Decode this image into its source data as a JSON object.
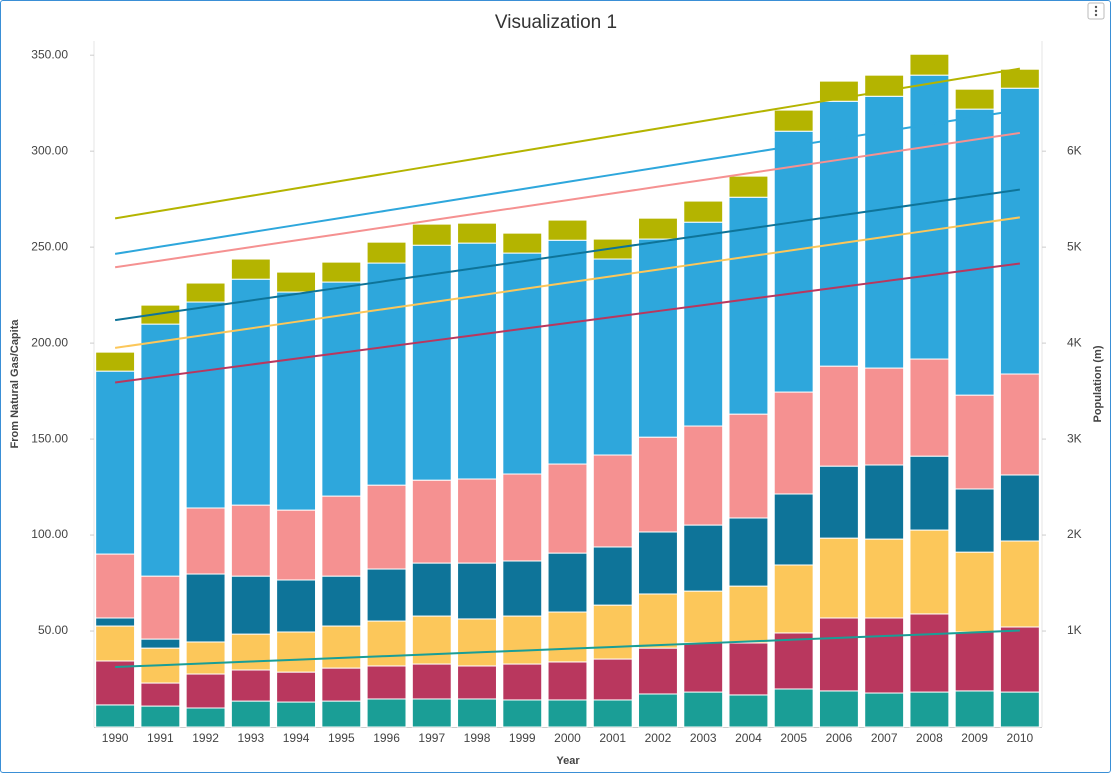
{
  "chart_data": {
    "type": "bar",
    "stacked": true,
    "title": "Visualization 1",
    "x_label": "Year",
    "y_label": "From Natural Gas/Capita",
    "y2_label": "Population (m)",
    "categories": [
      "1990",
      "1991",
      "1992",
      "1993",
      "1994",
      "1995",
      "1996",
      "1997",
      "1998",
      "1999",
      "2000",
      "2001",
      "2002",
      "2003",
      "2004",
      "2005",
      "2006",
      "2007",
      "2008",
      "2009",
      "2010"
    ],
    "ylim": [
      0,
      360
    ],
    "yticks": [
      {
        "value": 50,
        "label": "50.00"
      },
      {
        "value": 100,
        "label": "100.00"
      },
      {
        "value": 150,
        "label": "150.00"
      },
      {
        "value": 200,
        "label": "200.00"
      },
      {
        "value": 250,
        "label": "250.00"
      },
      {
        "value": 300,
        "label": "300.00"
      },
      {
        "value": 350,
        "label": "350.00"
      }
    ],
    "y2lim": [
      0,
      7200
    ],
    "y2ticks": [
      {
        "value": 1000,
        "label": "1K"
      },
      {
        "value": 2000,
        "label": "2K"
      },
      {
        "value": 3000,
        "label": "3K"
      },
      {
        "value": 4000,
        "label": "4K"
      },
      {
        "value": 5000,
        "label": "5K"
      },
      {
        "value": 6000,
        "label": "6K"
      }
    ],
    "grid": false,
    "series": [
      {
        "color": "#1a9e96",
        "values": [
          11.5,
          10.9,
          9.9,
          13.5,
          13,
          13.5,
          14.6,
          14.6,
          14.6,
          14.1,
          14.1,
          14.1,
          17.2,
          18.2,
          16.7,
          19.8,
          18.8,
          17.7,
          18.2,
          18.8,
          18.2
        ]
      },
      {
        "color": "#b9375e",
        "values": [
          22.9,
          12,
          17.7,
          16.2,
          15.6,
          17.2,
          17.2,
          18.2,
          17.2,
          18.7,
          19.8,
          21.3,
          23.9,
          25.6,
          27.1,
          29.2,
          38,
          39.1,
          40.7,
          30.7,
          33.9
        ]
      },
      {
        "color": "#fcc75a",
        "values": [
          18.2,
          18.2,
          16.7,
          18.7,
          20.9,
          21.9,
          23.4,
          25,
          24.5,
          25,
          26,
          28.1,
          28.2,
          27,
          29.6,
          35.4,
          41.6,
          41.1,
          43.7,
          41.6,
          44.8
        ]
      },
      {
        "color": "#0e7499",
        "values": [
          4.2,
          4.7,
          35.4,
          30.2,
          27.1,
          26,
          27.1,
          27.6,
          29.1,
          28.7,
          30.7,
          30.3,
          32.3,
          34.4,
          35.5,
          37,
          37.5,
          38.6,
          38.5,
          32.9,
          34.4
        ]
      },
      {
        "color": "#f59191",
        "values": [
          33.3,
          32.8,
          34.4,
          37,
          36.4,
          41.7,
          43.7,
          43.2,
          43.8,
          45.3,
          46.4,
          47.9,
          49.4,
          51.6,
          54.1,
          53.1,
          52.1,
          50.5,
          50.6,
          48.9,
          52.6
        ]
      },
      {
        "color": "#2ea7dc",
        "values": [
          95.3,
          131.3,
          107.3,
          117.7,
          113.6,
          111.5,
          115.7,
          122.4,
          122.9,
          115.1,
          116.6,
          102.1,
          103.2,
          106.2,
          113,
          135.9,
          138,
          141.6,
          147.9,
          149,
          148.9
        ]
      },
      {
        "color": "#b4b400",
        "values": [
          9.9,
          9.9,
          9.9,
          10.5,
          10.4,
          10.4,
          10.9,
          11,
          10.4,
          10.4,
          10.5,
          10.4,
          10.9,
          11,
          11,
          11,
          10.5,
          11,
          10.9,
          10.4,
          9.9
        ]
      },
      {
        "type": "line",
        "axis": "y2",
        "color": "#b4b400",
        "values": [
          5300,
          5378,
          5456,
          5534,
          5612,
          5690,
          5768,
          5846,
          5924,
          6002,
          6080,
          6158,
          6236,
          6314,
          6392,
          6470,
          6548,
          6626,
          6704,
          6782,
          6860
        ]
      },
      {
        "type": "line",
        "axis": "y2",
        "color": "#2ea7dc",
        "values": [
          4930,
          5005,
          5080,
          5155,
          5230,
          5305,
          5380,
          5455,
          5530,
          5605,
          5680,
          5755,
          5830,
          5905,
          5980,
          6055,
          6130,
          6205,
          6280,
          6355,
          6430
        ]
      },
      {
        "type": "line",
        "axis": "y2",
        "color": "#f59191",
        "values": [
          4790,
          4860,
          4930,
          5000,
          5070,
          5140,
          5210,
          5280,
          5350,
          5420,
          5490,
          5560,
          5630,
          5700,
          5770,
          5840,
          5910,
          5980,
          6050,
          6120,
          6190
        ]
      },
      {
        "type": "line",
        "axis": "y2",
        "color": "#0e7499",
        "values": [
          4240,
          4308,
          4376,
          4444,
          4512,
          4580,
          4648,
          4716,
          4784,
          4852,
          4920,
          4988,
          5056,
          5124,
          5192,
          5260,
          5328,
          5396,
          5464,
          5532,
          5600
        ]
      },
      {
        "type": "line",
        "axis": "y2",
        "color": "#fcc75a",
        "values": [
          3950,
          4018,
          4086,
          4154,
          4222,
          4290,
          4358,
          4426,
          4494,
          4562,
          4630,
          4698,
          4766,
          4834,
          4902,
          4970,
          5038,
          5106,
          5174,
          5242,
          5310
        ]
      },
      {
        "type": "line",
        "axis": "y2",
        "color": "#b9375e",
        "values": [
          3590,
          3652,
          3714,
          3776,
          3838,
          3900,
          3962,
          4024,
          4086,
          4148,
          4210,
          4272,
          4334,
          4396,
          4458,
          4520,
          4582,
          4644,
          4706,
          4768,
          4830
        ]
      },
      {
        "type": "line",
        "axis": "y2",
        "color": "#1a9e96",
        "values": [
          625,
          644,
          663,
          682,
          701,
          720,
          739,
          758,
          777,
          796,
          815,
          834,
          853,
          872,
          891,
          910,
          929,
          948,
          967,
          986,
          1005
        ]
      }
    ]
  }
}
